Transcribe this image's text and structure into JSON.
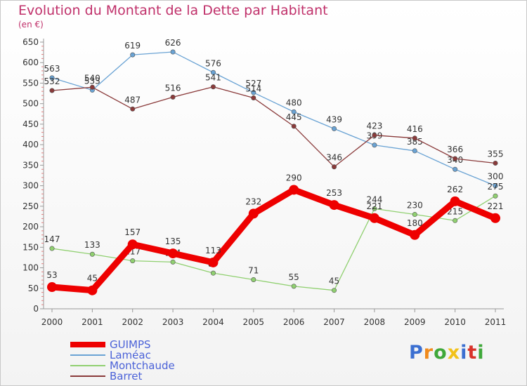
{
  "title": "Evolution du Montant de la Dette par Habitant",
  "subtitle": "(en €)",
  "logo": "Proxiti",
  "chart_data": {
    "type": "line",
    "x": [
      "2000",
      "2001",
      "2002",
      "2003",
      "2004",
      "2005",
      "2006",
      "2007",
      "2008",
      "2009",
      "2010",
      "2011"
    ],
    "ylim": [
      0,
      650
    ],
    "yticks": [
      0,
      50,
      100,
      150,
      200,
      250,
      300,
      350,
      400,
      450,
      500,
      550,
      600,
      650
    ],
    "grid": false,
    "legend_position": "bottom-left",
    "series": [
      {
        "name": "Laméac",
        "color": "#6aa3d4",
        "values": [
          563,
          533,
          619,
          626,
          576,
          527,
          480,
          439,
          399,
          385,
          340,
          300
        ]
      },
      {
        "name": "Montchaude",
        "color": "#90d070",
        "values": [
          147,
          133,
          117,
          114,
          87,
          71,
          55,
          45,
          244,
          230,
          215,
          275
        ]
      },
      {
        "name": "Barret",
        "color": "#8a3a3a",
        "values": [
          532,
          540,
          487,
          516,
          541,
          514,
          445,
          346,
          423,
          416,
          366,
          355
        ]
      },
      {
        "name": "GUIMPS",
        "color": "#ee0000",
        "values": [
          53,
          45,
          157,
          135,
          113,
          232,
          290,
          253,
          221,
          180,
          262,
          221
        ]
      }
    ]
  }
}
